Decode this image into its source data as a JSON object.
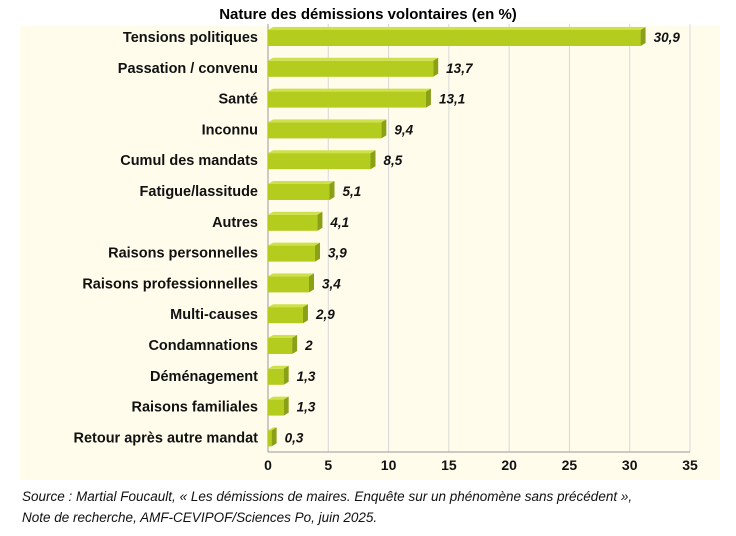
{
  "chart_data": {
    "type": "bar",
    "orientation": "horizontal",
    "title": "Nature des démissions volontaires (en %)",
    "categories": [
      "Tensions politiques",
      "Passation / convenu",
      "Santé",
      "Inconnu",
      "Cumul des mandats",
      "Fatigue/lassitude",
      "Autres",
      "Raisons personnelles",
      "Raisons professionnelles",
      "Multi-causes",
      "Condamnations",
      "Déménagement",
      "Raisons familiales",
      "Retour après autre mandat"
    ],
    "values": [
      30.9,
      13.7,
      13.1,
      9.4,
      8.5,
      5.1,
      4.1,
      3.9,
      3.4,
      2.9,
      2,
      1.3,
      1.3,
      0.3
    ],
    "value_labels": [
      "30,9",
      "13,7",
      "13,1",
      "9,4",
      "8,5",
      "5,1",
      "4,1",
      "3,9",
      "3,4",
      "2,9",
      "2",
      "1,3",
      "1,3",
      "0,3"
    ],
    "xlim": [
      0,
      35
    ],
    "xticks": [
      0,
      5,
      10,
      15,
      20,
      25,
      30,
      35
    ],
    "xlabel": "",
    "ylabel": "",
    "grid": true,
    "bar_color": "#b4cc1e",
    "bar_top_color": "#cfe14a",
    "bar_side_color": "#8aa016",
    "background_color": "#fffcec",
    "grid_color": "#d8d8d8"
  },
  "source": {
    "line1": "Source : Martial Foucault, « Les démissions de maires. Enquête sur un phénomène sans précédent »,",
    "line2": "Note de recherche, AMF-CEVIPOF/Sciences Po, juin 2025."
  }
}
